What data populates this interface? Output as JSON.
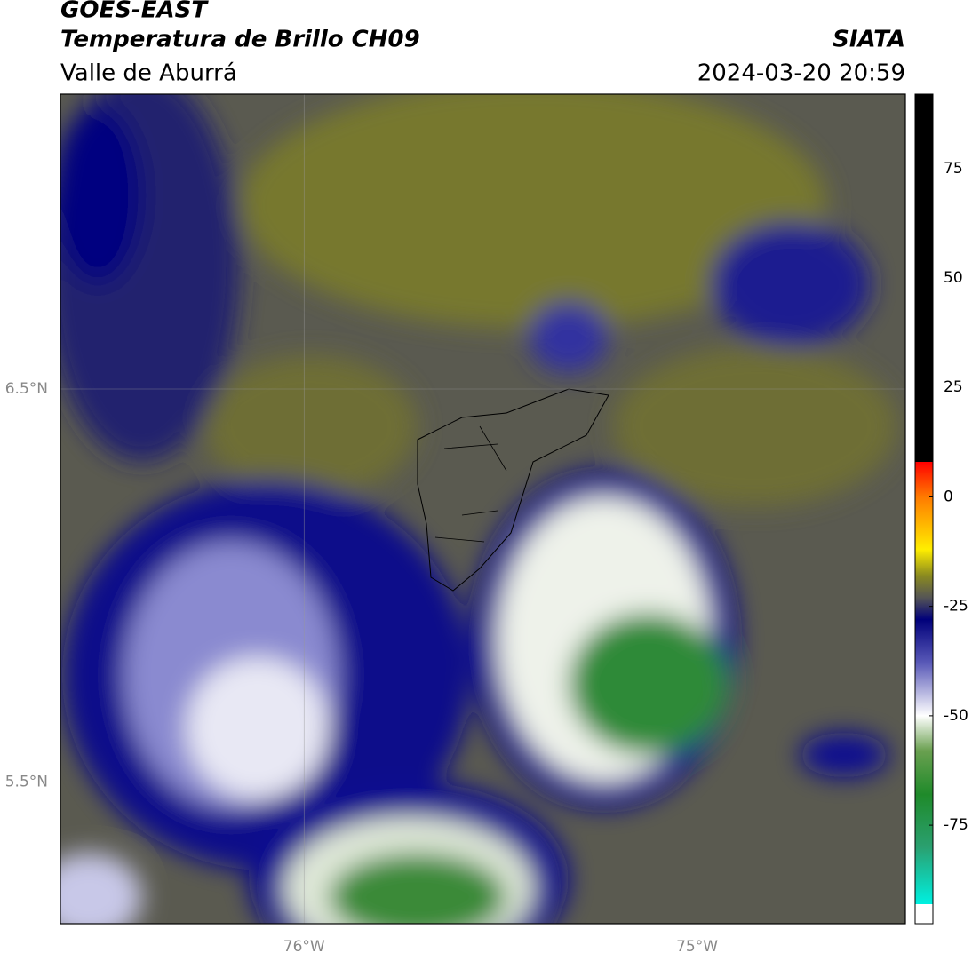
{
  "header": {
    "title": "GOES-EAST",
    "subtitle": "Temperatura de Brillo CH09",
    "region": "Valle de Aburrá",
    "source": "SIATA",
    "datetime": "2024-03-20 20:59"
  },
  "map": {
    "xlim": [
      -76.62,
      -74.47
    ],
    "ylim": [
      5.14,
      7.25
    ],
    "xticks": [
      {
        "value": -76,
        "label": "76°W"
      },
      {
        "value": -75,
        "label": "75°W"
      }
    ],
    "yticks": [
      {
        "value": 6.5,
        "label": "6.5°N"
      },
      {
        "value": 5.5,
        "label": "5.5°N"
      }
    ],
    "grid": true
  },
  "colorbar": {
    "range": [
      -97.5,
      92
    ],
    "ticks": [
      75,
      50,
      25,
      0,
      -25,
      -50,
      -75
    ],
    "colors": [
      {
        "value": 92,
        "color": "#000000"
      },
      {
        "value": 8,
        "color": "#000000"
      },
      {
        "value": 8,
        "color": "#ff0000"
      },
      {
        "value": 0,
        "color": "#ff7a00"
      },
      {
        "value": -12,
        "color": "#ffee00"
      },
      {
        "value": -18,
        "color": "#8a8a20"
      },
      {
        "value": -23,
        "color": "#555555"
      },
      {
        "value": -28,
        "color": "#00007a"
      },
      {
        "value": -38,
        "color": "#5a5ab8"
      },
      {
        "value": -50,
        "color": "#ffffff"
      },
      {
        "value": -58,
        "color": "#6aa050"
      },
      {
        "value": -68,
        "color": "#1f8a2a"
      },
      {
        "value": -80,
        "color": "#2aa070"
      },
      {
        "value": -93,
        "color": "#00f0e0"
      },
      {
        "value": -93,
        "color": "#ffffff"
      },
      {
        "value": -97.5,
        "color": "#ffffff"
      }
    ]
  }
}
